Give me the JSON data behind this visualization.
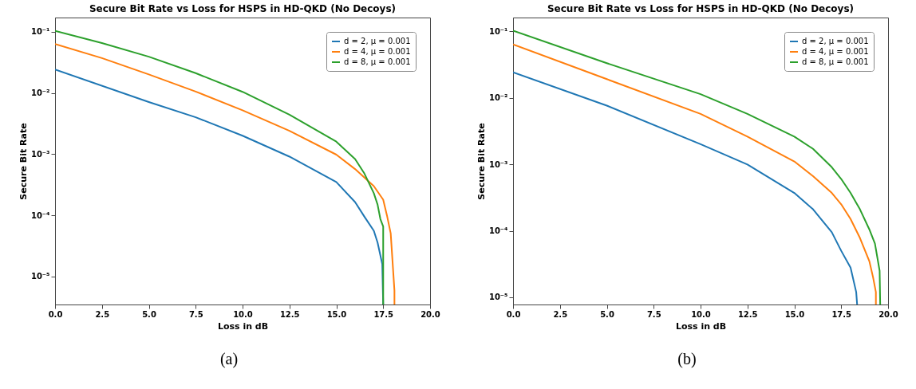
{
  "chart_data": [
    {
      "type": "line",
      "title": "Secure Bit Rate vs Loss for HSPS in HD-QKD (No Decoys)",
      "xlabel": "Loss in dB",
      "ylabel": "Secure Bit Rate",
      "annotations": [
        "(a)"
      ],
      "log": "y",
      "grid": false,
      "legend": "top right",
      "line_style": "solid",
      "marker": "none",
      "xlim": [
        0,
        20
      ],
      "ylim": [
        3.5e-06,
        0.17
      ],
      "xticks": [
        {
          "value": 0,
          "label": "0.0"
        },
        {
          "value": 2.5,
          "label": "2.5"
        },
        {
          "value": 5,
          "label": "5.0"
        },
        {
          "value": 7.5,
          "label": "7.5"
        },
        {
          "value": 10,
          "label": "10.0"
        },
        {
          "value": 12.5,
          "label": "12.5"
        },
        {
          "value": 15,
          "label": "15.0"
        },
        {
          "value": 17.5,
          "label": "17.5"
        },
        {
          "value": 20,
          "label": "20.0"
        }
      ],
      "yticks": [
        {
          "value": 1e-05,
          "label": "10⁻⁵"
        },
        {
          "value": 0.0001,
          "label": "10⁻⁴"
        },
        {
          "value": 0.001,
          "label": "10⁻³"
        },
        {
          "value": 0.01,
          "label": "10⁻²"
        },
        {
          "value": 0.1,
          "label": "10⁻¹"
        }
      ],
      "series": [
        {
          "name": "d = 2, μ = 0.001",
          "color": "#1f77b4",
          "x": [
            0,
            5,
            7.5,
            10,
            12.5,
            15,
            16,
            16.5,
            17,
            17.2,
            17.45,
            17.5
          ],
          "values": [
            0.024,
            0.0071,
            0.004,
            0.002,
            0.00091,
            0.00035,
            0.000165,
            9.5e-05,
            5.6e-05,
            3.6e-05,
            1.6e-05,
            3.5e-06
          ]
        },
        {
          "name": "d = 4, μ = 0.001",
          "color": "#ff7f0e",
          "x": [
            0,
            2.5,
            5,
            7.5,
            10,
            12.5,
            15,
            16,
            17,
            17.5,
            17.7,
            17.9,
            18.1,
            18.1
          ],
          "values": [
            0.063,
            0.037,
            0.02,
            0.0105,
            0.0052,
            0.0024,
            0.00098,
            0.00057,
            0.0003,
            0.00018,
            0.0001,
            5.1e-05,
            5.9e-06,
            3.5e-06
          ]
        },
        {
          "name": "d = 8, μ = 0.001",
          "color": "#2ca02c",
          "x": [
            0,
            2.5,
            5,
            7.5,
            10,
            12.5,
            15,
            16,
            16.5,
            17,
            17.2,
            17.35,
            17.5,
            17.5
          ],
          "values": [
            0.103,
            0.065,
            0.039,
            0.021,
            0.0104,
            0.0044,
            0.0016,
            0.00083,
            0.00048,
            0.00023,
            0.00015,
            8.7e-05,
            6.6e-05,
            3.5e-06
          ]
        }
      ]
    },
    {
      "type": "line",
      "title": "Secure Bit Rate vs Loss for HSPS in HD-QKD (No Decoys)",
      "xlabel": "Loss in dB",
      "ylabel": "Secure Bit Rate",
      "annotations": [
        "(b)"
      ],
      "log": "y",
      "grid": false,
      "legend": "top right",
      "line_style": "solid",
      "marker": "none",
      "xlim": [
        0,
        20
      ],
      "ylim": [
        7.8e-06,
        0.16
      ],
      "xticks": [
        {
          "value": 0,
          "label": "0.0"
        },
        {
          "value": 2.5,
          "label": "2.5"
        },
        {
          "value": 5,
          "label": "5.0"
        },
        {
          "value": 7.5,
          "label": "7.5"
        },
        {
          "value": 10,
          "label": "10.0"
        },
        {
          "value": 12.5,
          "label": "12.5"
        },
        {
          "value": 15,
          "label": "15.0"
        },
        {
          "value": 17.5,
          "label": "17.5"
        },
        {
          "value": 20,
          "label": "20.0"
        }
      ],
      "yticks": [
        {
          "value": 1e-05,
          "label": "10⁻⁵"
        },
        {
          "value": 0.0001,
          "label": "10⁻⁴"
        },
        {
          "value": 0.001,
          "label": "10⁻³"
        },
        {
          "value": 0.01,
          "label": "10⁻²"
        },
        {
          "value": 0.1,
          "label": "10⁻¹"
        }
      ],
      "series": [
        {
          "name": "d = 2, μ = 0.001",
          "color": "#1f77b4",
          "x": [
            0,
            5,
            10,
            12.5,
            15,
            16,
            17,
            17.5,
            18,
            18.3,
            18.35
          ],
          "values": [
            0.024,
            0.0076,
            0.002,
            0.00099,
            0.00037,
            0.00021,
            9.5e-05,
            5e-05,
            2.8e-05,
            1.2e-05,
            7.8e-06
          ]
        },
        {
          "name": "d = 4, μ = 0.001",
          "color": "#ff7f0e",
          "x": [
            0,
            5,
            10,
            12.5,
            15,
            16,
            17,
            17.5,
            18,
            18.5,
            19,
            19.2,
            19.35,
            19.35
          ],
          "values": [
            0.063,
            0.019,
            0.0057,
            0.0026,
            0.0011,
            0.00066,
            0.00037,
            0.00025,
            0.00015,
            7.8e-05,
            3.5e-05,
            2e-05,
            1.2e-05,
            7.8e-06
          ]
        },
        {
          "name": "d = 8, μ = 0.001",
          "color": "#2ca02c",
          "x": [
            0,
            5,
            10,
            12.5,
            15,
            16,
            17,
            17.5,
            18,
            18.5,
            19,
            19.3,
            19.55,
            19.58
          ],
          "values": [
            0.102,
            0.033,
            0.0113,
            0.0057,
            0.0026,
            0.0017,
            0.0009,
            0.0006,
            0.00037,
            0.00021,
            0.000105,
            6.4e-05,
            2.5e-05,
            7.8e-06
          ]
        }
      ]
    }
  ]
}
